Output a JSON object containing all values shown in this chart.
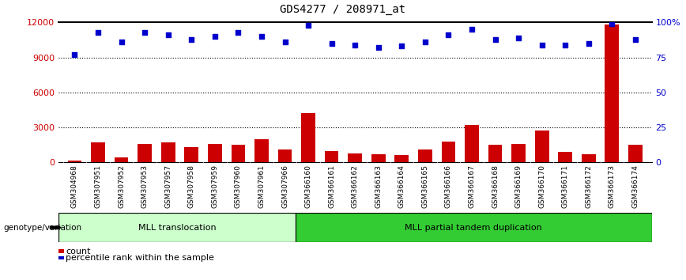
{
  "title": "GDS4277 / 208971_at",
  "samples": [
    "GSM304968",
    "GSM307951",
    "GSM307952",
    "GSM307953",
    "GSM307957",
    "GSM307958",
    "GSM307959",
    "GSM307960",
    "GSM307961",
    "GSM307966",
    "GSM366160",
    "GSM366161",
    "GSM366162",
    "GSM366163",
    "GSM366164",
    "GSM366165",
    "GSM366166",
    "GSM366167",
    "GSM366168",
    "GSM366169",
    "GSM366170",
    "GSM366171",
    "GSM366172",
    "GSM366173",
    "GSM366174"
  ],
  "counts": [
    180,
    1700,
    400,
    1600,
    1700,
    1300,
    1600,
    1500,
    2000,
    1100,
    4200,
    1000,
    800,
    700,
    600,
    1100,
    1800,
    3200,
    1500,
    1600,
    2700,
    900,
    700,
    11800,
    1500
  ],
  "percentile_ranks": [
    77,
    93,
    86,
    93,
    91,
    88,
    90,
    93,
    90,
    86,
    98,
    85,
    84,
    82,
    83,
    86,
    91,
    95,
    88,
    89,
    84,
    84,
    85,
    99,
    88
  ],
  "group1_label": "MLL translocation",
  "group2_label": "MLL partial tandem duplication",
  "group1_count": 10,
  "group2_count": 15,
  "genotype_label": "genotype/variation",
  "legend_count_label": "count",
  "legend_percentile_label": "percentile rank within the sample",
  "bar_color": "#cc0000",
  "dot_color": "#0000cc",
  "group1_bg": "#ccffcc",
  "group2_bg": "#33cc33",
  "xticklabel_bg": "#d8d8d8",
  "ylim_left": [
    0,
    12000
  ],
  "ylim_right": [
    0,
    100
  ],
  "yticks_left": [
    0,
    3000,
    6000,
    9000,
    12000
  ],
  "yticks_right": [
    0,
    25,
    50,
    75,
    100
  ],
  "yticklabels_right": [
    "0",
    "25",
    "50",
    "75",
    "100%"
  ],
  "grid_values": [
    3000,
    6000,
    9000
  ],
  "title_fontsize": 10
}
